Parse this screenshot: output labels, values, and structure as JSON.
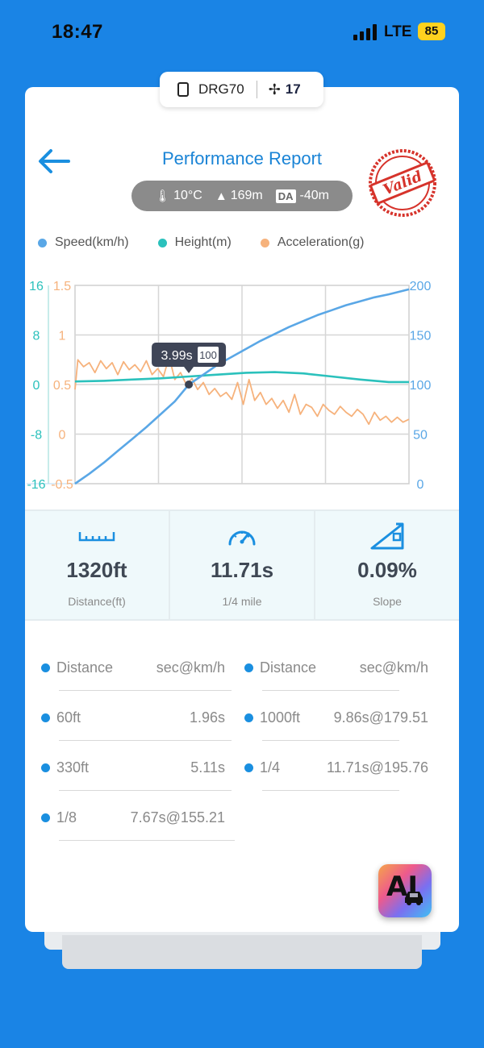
{
  "status_bar": {
    "time": "18:47",
    "network": "LTE",
    "battery": "85"
  },
  "device": {
    "name": "DRG70",
    "satellites": "17"
  },
  "header": {
    "title": "Performance Report",
    "temperature": "10°C",
    "altitude": "169m",
    "da_label": "DA",
    "density_altitude": "-40m",
    "stamp_text": "Valid"
  },
  "legend": [
    {
      "label": "Speed(km/h)",
      "color": "#5aa7e6"
    },
    {
      "label": "Height(m)",
      "color": "#2bc1bc"
    },
    {
      "label": "Acceleration(g)",
      "color": "#f6b27c"
    }
  ],
  "chart_data": {
    "type": "line",
    "x_range": [
      0,
      11.71
    ],
    "axes": {
      "height_ticks": [
        "16",
        "8",
        "0",
        "-8",
        "-16"
      ],
      "height_range": [
        -16,
        16
      ],
      "accel_ticks": [
        "1.5",
        "1",
        "0.5",
        "0",
        "-0.5"
      ],
      "accel_range": [
        -0.5,
        1.5
      ],
      "speed_ticks": [
        "200",
        "150",
        "100",
        "50",
        "0"
      ],
      "speed_range": [
        0,
        200
      ]
    },
    "series": [
      {
        "name": "Speed(km/h)",
        "axis": "speed",
        "x": [
          0,
          0.5,
          1,
          1.5,
          2,
          2.5,
          3,
          3.5,
          3.99,
          4.5,
          5,
          5.5,
          6,
          6.5,
          7,
          7.5,
          8,
          8.5,
          9,
          9.5,
          10,
          10.5,
          11,
          11.71
        ],
        "values": [
          0,
          10,
          21,
          33,
          45,
          57,
          70,
          83,
          100,
          110,
          120,
          128,
          136,
          144,
          151,
          158,
          164,
          170,
          175,
          180,
          184,
          188,
          191,
          196
        ]
      },
      {
        "name": "Height(m)",
        "axis": "height",
        "x": [
          0,
          1,
          2,
          3,
          4,
          5,
          6,
          7,
          8,
          9,
          10,
          11,
          11.71
        ],
        "values": [
          0.5,
          0.6,
          0.8,
          1.0,
          1.3,
          1.6,
          1.9,
          2.0,
          1.8,
          1.3,
          0.8,
          0.4,
          0.4
        ]
      },
      {
        "name": "Acceleration(g)",
        "axis": "accel",
        "x": [
          0,
          0.1,
          0.3,
          0.5,
          0.7,
          0.9,
          1.1,
          1.3,
          1.5,
          1.7,
          1.9,
          2.1,
          2.3,
          2.5,
          2.7,
          2.9,
          3.1,
          3.3,
          3.5,
          3.7,
          3.9,
          4.1,
          4.3,
          4.5,
          4.7,
          4.9,
          5.1,
          5.3,
          5.5,
          5.7,
          5.9,
          6.1,
          6.3,
          6.5,
          6.7,
          6.9,
          7.1,
          7.3,
          7.5,
          7.7,
          7.9,
          8.1,
          8.3,
          8.5,
          8.7,
          8.9,
          9.1,
          9.3,
          9.5,
          9.7,
          9.9,
          10.1,
          10.3,
          10.5,
          10.7,
          10.9,
          11.1,
          11.3,
          11.5,
          11.71
        ],
        "values": [
          0.45,
          0.75,
          0.68,
          0.72,
          0.62,
          0.74,
          0.66,
          0.72,
          0.6,
          0.73,
          0.65,
          0.7,
          0.63,
          0.74,
          0.6,
          0.66,
          0.58,
          0.78,
          0.55,
          0.62,
          0.5,
          0.56,
          0.45,
          0.52,
          0.4,
          0.46,
          0.38,
          0.42,
          0.35,
          0.52,
          0.3,
          0.55,
          0.34,
          0.42,
          0.3,
          0.36,
          0.26,
          0.34,
          0.22,
          0.4,
          0.2,
          0.3,
          0.27,
          0.18,
          0.3,
          0.24,
          0.2,
          0.28,
          0.22,
          0.18,
          0.25,
          0.2,
          0.1,
          0.22,
          0.14,
          0.18,
          0.12,
          0.17,
          0.12,
          0.15
        ]
      }
    ],
    "annotation": {
      "time": "3.99s",
      "speed": "100"
    }
  },
  "stats": [
    {
      "value": "1320ft",
      "label": "Distance(ft)",
      "icon": "ruler-icon"
    },
    {
      "value": "11.71s",
      "label": "1/4 mile",
      "icon": "speedometer-icon"
    },
    {
      "value": "0.09%",
      "label": "Slope",
      "icon": "slope-icon"
    }
  ],
  "splits": {
    "header_key": "Distance",
    "header_value": "sec@km/h",
    "left": [
      {
        "distance": "60ft",
        "value": "1.96s"
      },
      {
        "distance": "330ft",
        "value": "5.11s"
      },
      {
        "distance": "1/8",
        "value": "7.67s@155.21"
      }
    ],
    "right": [
      {
        "distance": "1000ft",
        "value": "9.86s@179.51"
      },
      {
        "distance": "1/4",
        "value": "11.71s@195.76"
      }
    ]
  },
  "ai_button": {
    "label": "AI"
  }
}
